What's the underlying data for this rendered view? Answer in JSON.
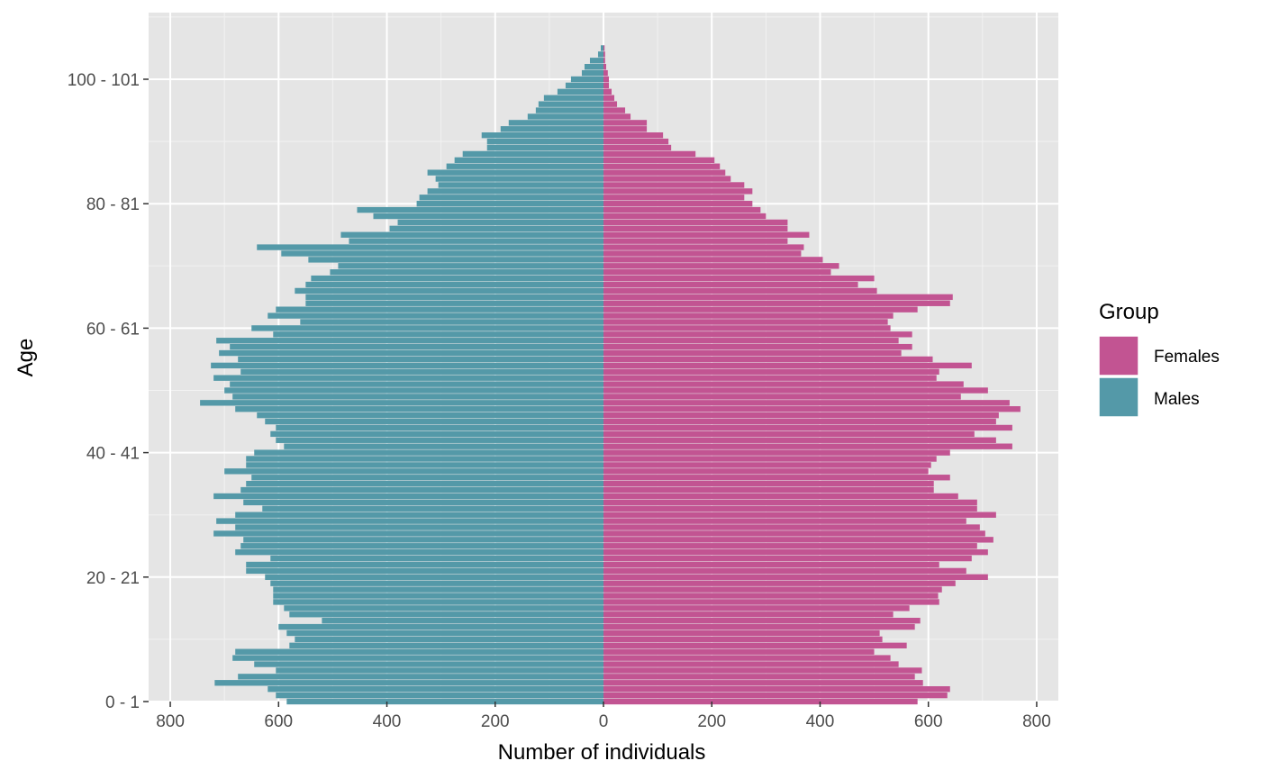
{
  "chart_data": {
    "type": "bar",
    "orientation": "horizontal",
    "subtype": "population-pyramid",
    "xlabel": "Number of individuals",
    "ylabel": "Age",
    "xlim": [
      -840,
      840
    ],
    "x_ticks": [
      -800,
      -600,
      -400,
      -200,
      0,
      200,
      400,
      600,
      800
    ],
    "x_tick_labels": [
      "800",
      "600",
      "400",
      "200",
      "0",
      "200",
      "400",
      "600",
      "800"
    ],
    "y_ticks": [
      0,
      20,
      40,
      60,
      80,
      100
    ],
    "y_tick_labels": [
      "0 - 1",
      "20 - 21",
      "40 - 41",
      "60 - 61",
      "80 - 81",
      "100 - 101"
    ],
    "categories_start_age": 0,
    "grid": true,
    "legend": {
      "title": "Group",
      "position": "right"
    },
    "series": [
      {
        "name": "Females",
        "color": "#C25492",
        "values": [
          580,
          635,
          640,
          590,
          575,
          588,
          545,
          530,
          500,
          560,
          515,
          510,
          575,
          585,
          535,
          565,
          620,
          618,
          625,
          650,
          710,
          670,
          620,
          680,
          710,
          690,
          720,
          705,
          695,
          670,
          725,
          690,
          690,
          655,
          610,
          610,
          640,
          600,
          605,
          615,
          640,
          755,
          725,
          685,
          755,
          725,
          730,
          770,
          750,
          660,
          710,
          665,
          615,
          620,
          680,
          608,
          550,
          570,
          545,
          570,
          530,
          525,
          535,
          580,
          640,
          645,
          505,
          470,
          500,
          420,
          435,
          405,
          365,
          370,
          340,
          380,
          340,
          340,
          300,
          290,
          275,
          260,
          275,
          260,
          235,
          225,
          215,
          205,
          170,
          125,
          120,
          110,
          80,
          80,
          50,
          40,
          25,
          20,
          15,
          10,
          10,
          8,
          5,
          3,
          3,
          2
        ]
      },
      {
        "name": "Males",
        "color": "#5499A8",
        "values": [
          585,
          605,
          620,
          718,
          675,
          605,
          645,
          685,
          680,
          580,
          570,
          585,
          600,
          520,
          580,
          590,
          610,
          610,
          610,
          615,
          625,
          660,
          660,
          615,
          680,
          670,
          665,
          720,
          680,
          715,
          680,
          630,
          665,
          720,
          670,
          660,
          650,
          700,
          660,
          660,
          645,
          590,
          605,
          615,
          605,
          625,
          640,
          680,
          745,
          685,
          700,
          690,
          720,
          670,
          725,
          675,
          710,
          690,
          715,
          610,
          650,
          560,
          620,
          605,
          550,
          550,
          570,
          550,
          540,
          505,
          490,
          545,
          595,
          640,
          470,
          485,
          395,
          380,
          425,
          455,
          345,
          340,
          325,
          305,
          310,
          325,
          290,
          275,
          260,
          215,
          215,
          225,
          190,
          175,
          140,
          125,
          120,
          110,
          85,
          70,
          60,
          40,
          35,
          25,
          10,
          5
        ]
      }
    ]
  }
}
